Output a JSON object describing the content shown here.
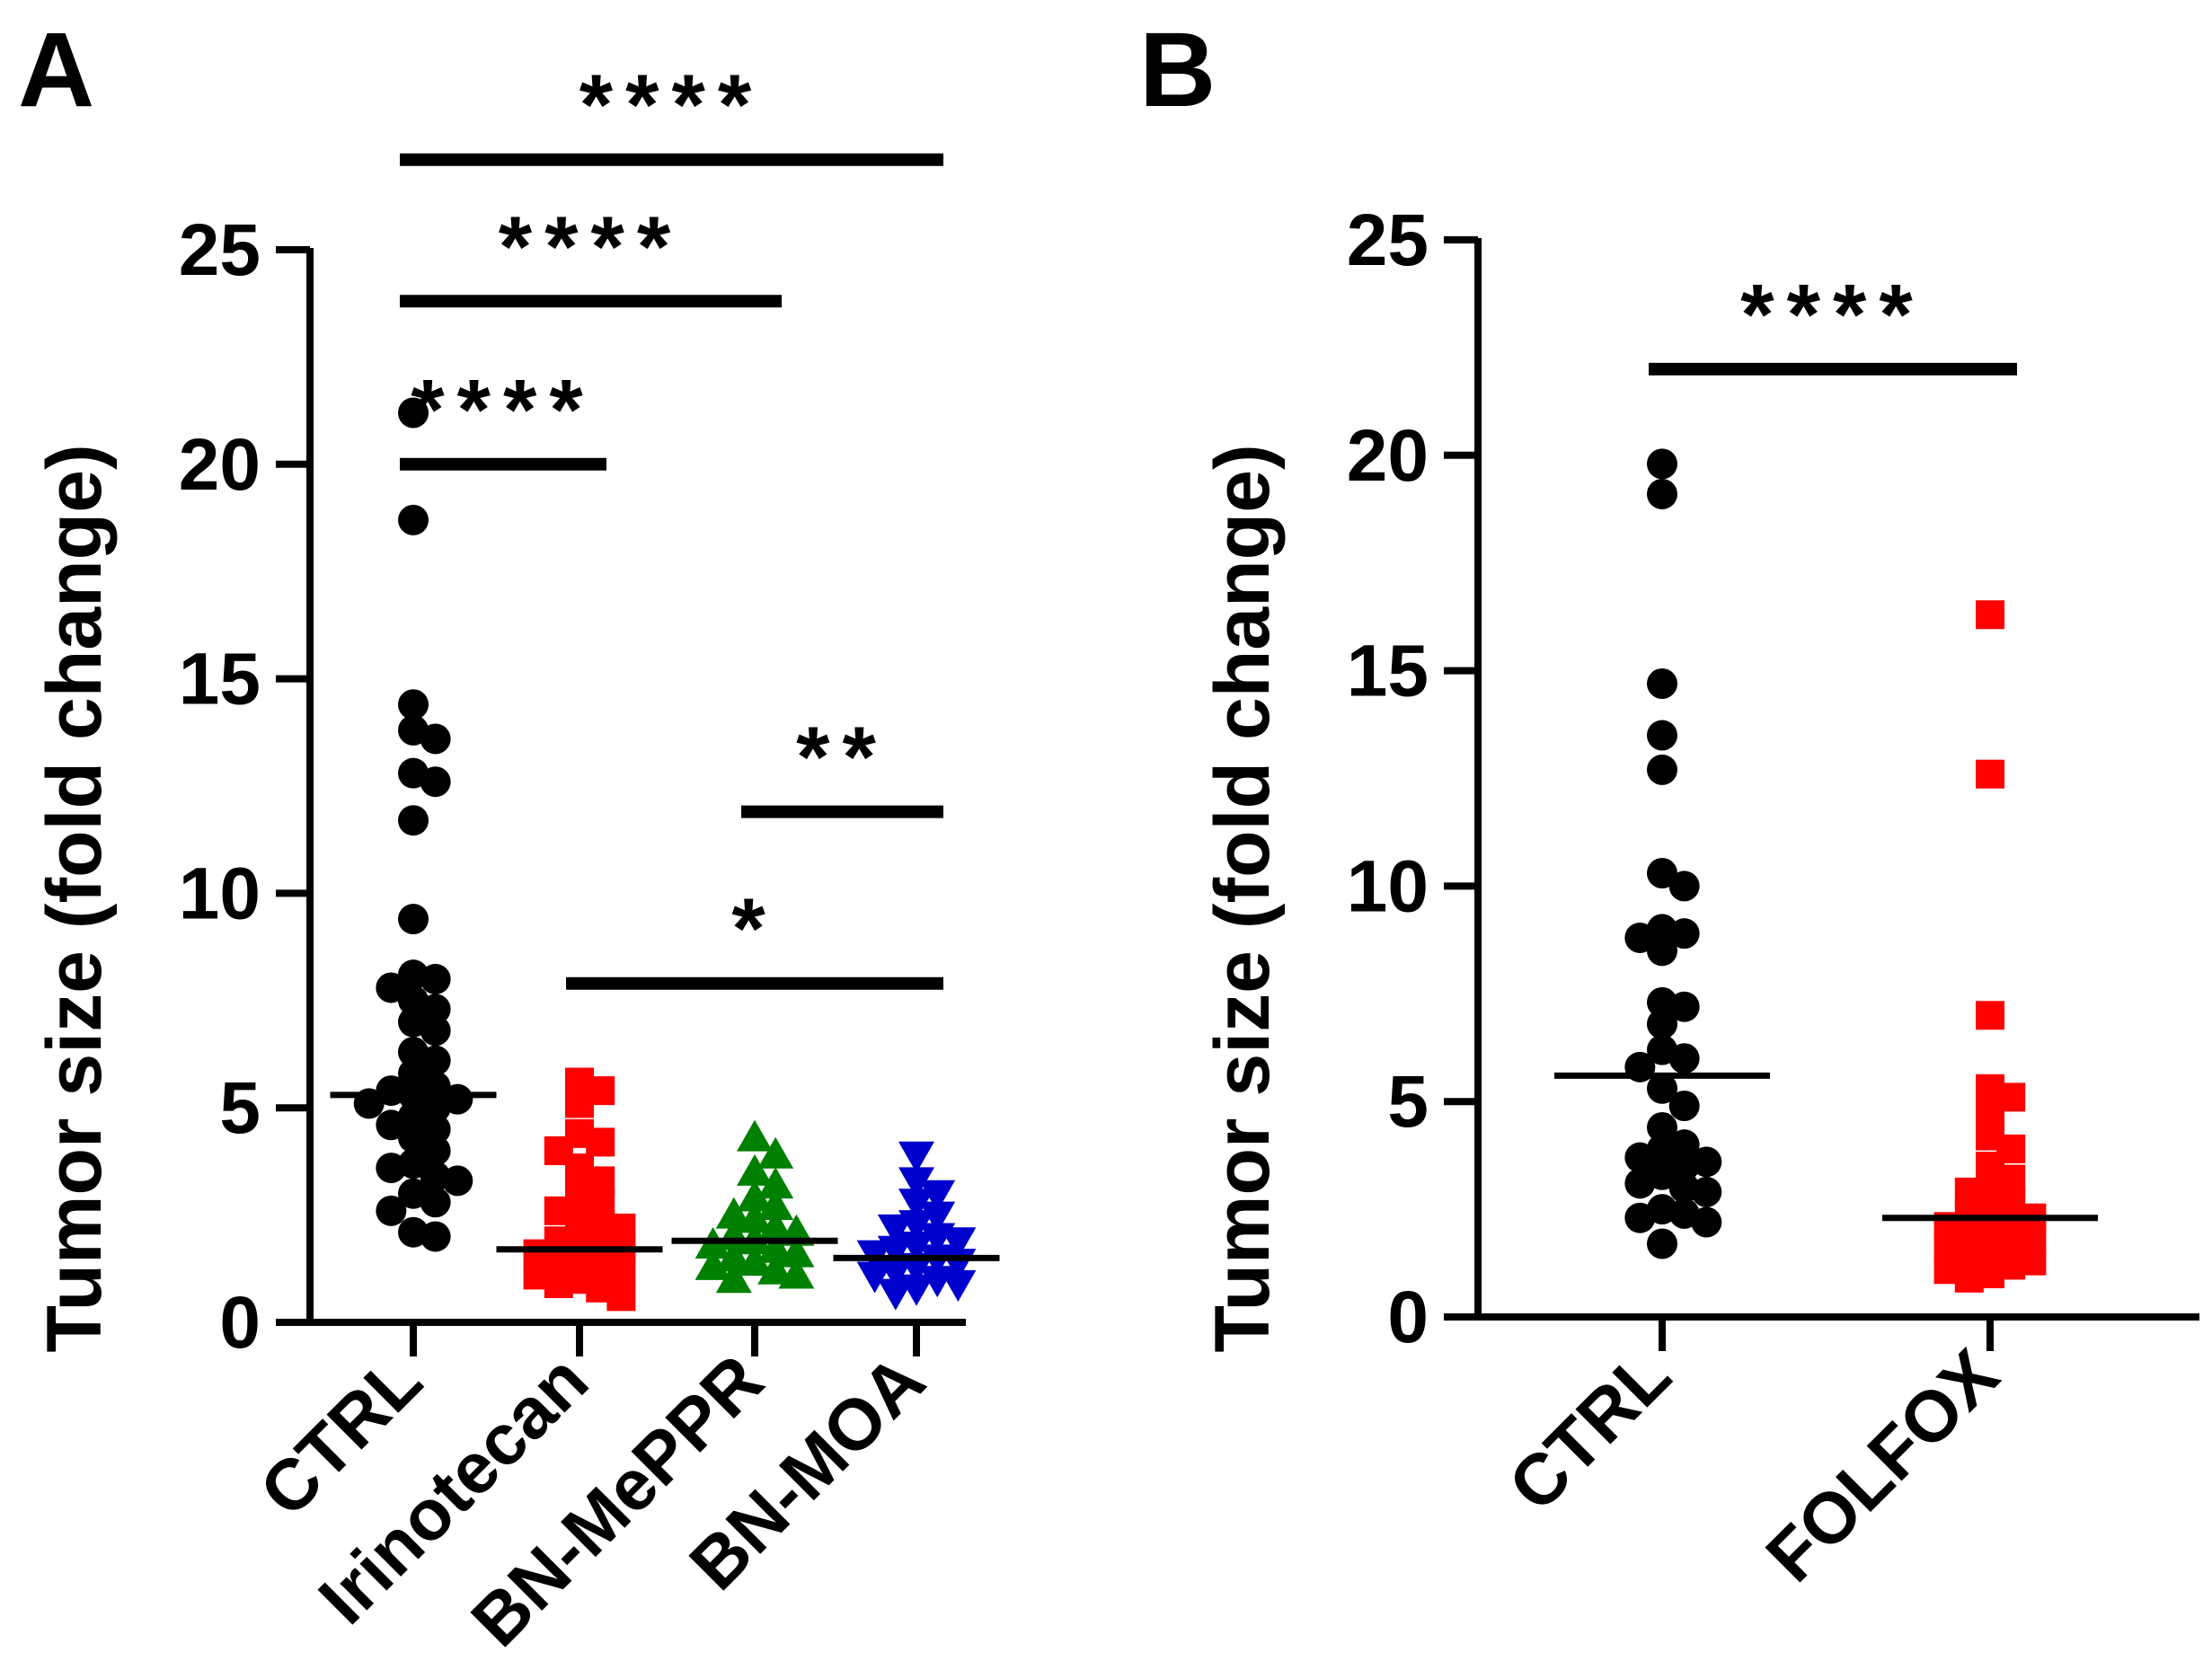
{
  "panels": [
    {
      "letter": "A",
      "ylabel": "Tumor size (fold change)",
      "yticks": [
        "0",
        "5",
        "10",
        "15",
        "20",
        "25"
      ]
    },
    {
      "letter": "B",
      "ylabel": "Tumor size (fold change)",
      "yticks": [
        "0",
        "5",
        "10",
        "15",
        "20",
        "25"
      ]
    }
  ],
  "chart_data": [
    {
      "type": "scatter",
      "title": "A",
      "xlabel": "",
      "ylabel": "Tumor size (fold change)",
      "ylim": [
        0,
        25
      ],
      "grid": false,
      "categories": [
        "CTRL",
        "Irinotecan",
        "BN-MePPR",
        "BN-MOA"
      ],
      "series": [
        {
          "category": "CTRL",
          "marker": "circle",
          "color": "#000000",
          "mean": 5.3,
          "values": [
            21.2,
            18.7,
            14.4,
            13.8,
            13.6,
            12.8,
            12.6,
            11.7,
            9.4,
            8.1,
            8.0,
            7.8,
            7.5,
            7.3,
            7.0,
            6.8,
            6.3,
            6.1,
            5.8,
            5.5,
            5.4,
            5.3,
            5.2,
            5.1,
            5.0,
            4.8,
            4.6,
            4.5,
            4.3,
            4.0,
            3.7,
            3.6,
            3.4,
            3.3,
            3.0,
            2.8,
            2.6,
            2.1,
            2.0
          ]
        },
        {
          "category": "Irinotecan",
          "marker": "square",
          "color": "#ff0000",
          "mean": 1.7,
          "values": [
            5.6,
            5.4,
            5.1,
            4.4,
            4.2,
            4.0,
            3.6,
            3.3,
            3.0,
            2.8,
            2.6,
            2.5,
            2.3,
            2.2,
            2.0,
            1.9,
            1.8,
            1.7,
            1.6,
            1.5,
            1.4,
            1.3,
            1.2,
            1.1,
            1.0,
            0.9,
            0.8,
            0.6
          ]
        },
        {
          "category": "BN-MePPR",
          "marker": "triangle-up",
          "color": "#008000",
          "mean": 1.9,
          "values": [
            4.3,
            3.9,
            3.5,
            3.2,
            2.9,
            2.7,
            2.5,
            2.4,
            2.2,
            2.1,
            2.0,
            1.9,
            1.8,
            1.7,
            1.6,
            1.5,
            1.4,
            1.3,
            1.2,
            1.1,
            1.0
          ]
        },
        {
          "category": "BN-MOA",
          "marker": "triangle-down",
          "color": "#0000cd",
          "mean": 1.5,
          "values": [
            3.9,
            3.3,
            3.0,
            2.8,
            2.5,
            2.3,
            2.2,
            2.0,
            1.9,
            1.8,
            1.7,
            1.6,
            1.5,
            1.4,
            1.3,
            1.2,
            1.1,
            1.0,
            0.9,
            0.8,
            0.7
          ]
        }
      ],
      "annotations": [
        {
          "from": "CTRL",
          "to": "Irinotecan",
          "label": "****",
          "y": 20.0
        },
        {
          "from": "CTRL",
          "to": "BN-MePPR",
          "label": "****",
          "y": 23.8
        },
        {
          "from": "CTRL",
          "to": "BN-MOA",
          "label": "****",
          "y": 27.1
        },
        {
          "from": "Irinotecan",
          "to": "BN-MOA",
          "label": "*",
          "y": 7.9
        },
        {
          "from": "BN-MePPR",
          "to": "BN-MOA",
          "label": "**",
          "y": 11.9
        }
      ]
    },
    {
      "type": "scatter",
      "title": "B",
      "xlabel": "",
      "ylabel": "Tumor size (fold change)",
      "ylim": [
        0,
        25
      ],
      "grid": false,
      "categories": [
        "CTRL",
        "FOLFOX"
      ],
      "series": [
        {
          "category": "CTRL",
          "marker": "circle",
          "color": "#000000",
          "mean": 5.6,
          "values": [
            19.8,
            19.1,
            14.7,
            13.5,
            12.7,
            10.3,
            10.0,
            9.0,
            8.9,
            8.8,
            8.5,
            7.3,
            7.2,
            6.8,
            6.2,
            6.0,
            5.8,
            5.3,
            4.9,
            4.4,
            4.0,
            3.9,
            3.7,
            3.6,
            3.5,
            3.3,
            3.1,
            3.0,
            2.9,
            2.5,
            2.4,
            2.3,
            2.2,
            1.7
          ]
        },
        {
          "category": "FOLFOX",
          "marker": "square",
          "color": "#ff0000",
          "mean": 2.3,
          "values": [
            16.3,
            12.6,
            7.0,
            5.3,
            5.1,
            4.8,
            4.2,
            3.9,
            3.5,
            3.2,
            3.0,
            2.9,
            2.7,
            2.5,
            2.4,
            2.3,
            2.2,
            2.1,
            2.0,
            1.9,
            1.8,
            1.7,
            1.6,
            1.5,
            1.4,
            1.3,
            1.2,
            1.1,
            1.0,
            0.9
          ]
        }
      ],
      "annotations": [
        {
          "from": "CTRL",
          "to": "FOLFOX",
          "label": "****",
          "y": 22.0
        }
      ]
    }
  ]
}
